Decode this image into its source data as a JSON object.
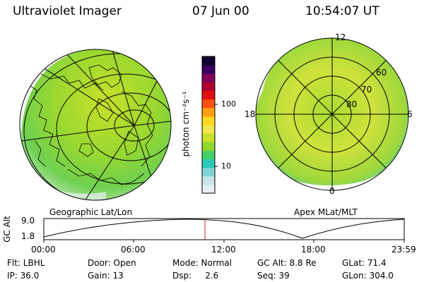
{
  "header": {
    "instrument": "Ultraviolet Imager",
    "date": "07 Jun 00",
    "time": "10:54:07 UT"
  },
  "colorbar": {
    "unit_label": "photon cm⁻²s⁻¹",
    "tick_100": "100",
    "tick_10": "10",
    "colors": [
      "#e8f0f0",
      "#c9e4e4",
      "#7fd3d6",
      "#2bc7b8",
      "#44d06a",
      "#8ed82c",
      "#c8e02a",
      "#eee84a",
      "#ffd820",
      "#ff9e10",
      "#ff5010",
      "#e01010",
      "#b00030",
      "#80005a",
      "#3a0060",
      "#100030"
    ]
  },
  "left_panel": {
    "label": "Geographic Lat/Lon"
  },
  "right_panel": {
    "label": "Apex MLat/MLT",
    "mlt_top": "12",
    "mlt_left": "18",
    "mlt_right": "6",
    "mlt_bottom": "0",
    "lat_60": "60",
    "lat_70": "70",
    "lat_80": "80"
  },
  "altitude_plot": {
    "ylabel": "GC Alt",
    "ytick_top": "9.0",
    "ytick_bottom": "1.8",
    "xticks": [
      "00:00",
      "06:00",
      "12:00",
      "18:00",
      "23:59"
    ],
    "current_marker_color": "#cc2020"
  },
  "status": {
    "flt": "Flt: LBHL",
    "ip": "IP: 36.0",
    "door": "Door: Open",
    "gain": "Gain: 13",
    "mode": "Mode: Normal",
    "dsp": "Dsp:     2.6",
    "gc_alt": "GC Alt: 8.8 Re",
    "seq": "Seq: 39",
    "glat": "GLat: 71.4",
    "glon": "GLon: 304.0"
  }
}
